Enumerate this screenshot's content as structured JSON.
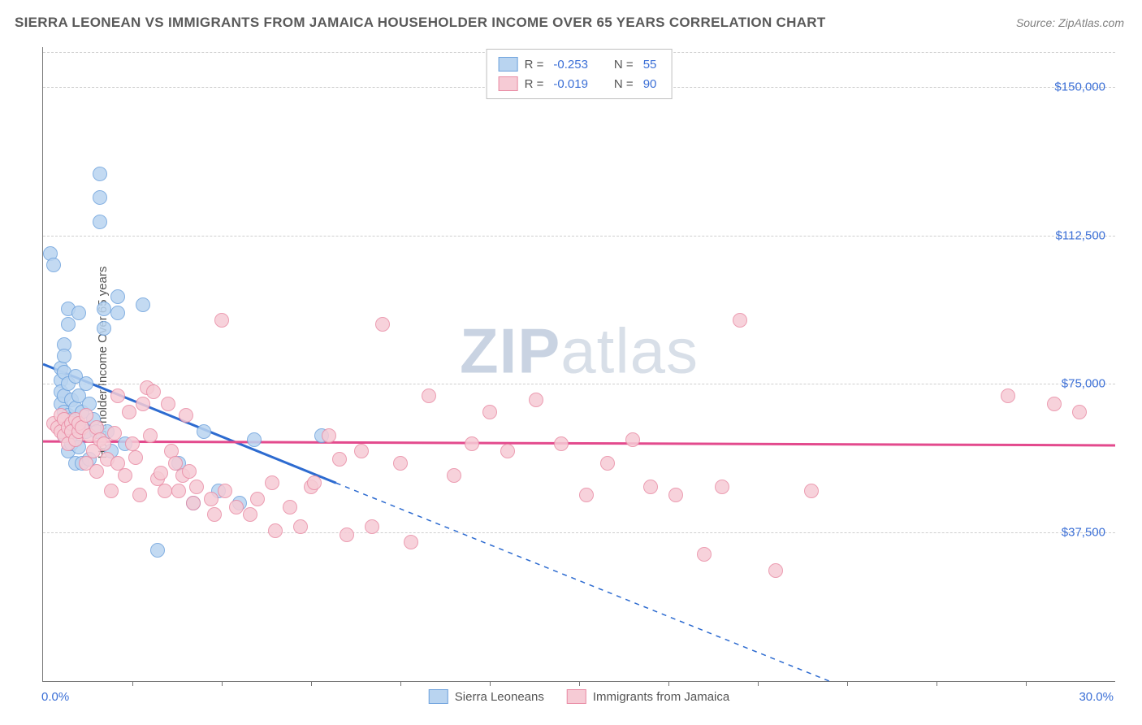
{
  "title": "SIERRA LEONEAN VS IMMIGRANTS FROM JAMAICA HOUSEHOLDER INCOME OVER 65 YEARS CORRELATION CHART",
  "source": "Source: ZipAtlas.com",
  "watermark_a": "ZIP",
  "watermark_b": "atlas",
  "chart": {
    "type": "scatter",
    "ylabel": "Householder Income Over 65 years",
    "xlim": [
      0,
      30
    ],
    "ylim": [
      0,
      160000
    ],
    "x_start_label": "0.0%",
    "x_end_label": "30.0%",
    "x_tick_positions": [
      2.5,
      5,
      7.5,
      10,
      12.5,
      15,
      17.5,
      20,
      22.5,
      25,
      27.5
    ],
    "y_ticks": [
      {
        "v": 37500,
        "label": "$37,500"
      },
      {
        "v": 75000,
        "label": "$75,000"
      },
      {
        "v": 112500,
        "label": "$112,500"
      },
      {
        "v": 150000,
        "label": "$150,000"
      }
    ],
    "grid_color": "#cfcfcf",
    "background_color": "#ffffff",
    "axis_color": "#777777",
    "tick_label_color": "#3b6fd6",
    "series": [
      {
        "name": "Sierra Leoneans",
        "fill": "#b9d4f0",
        "stroke": "#6fa3dd",
        "line_color": "#2d6bd0",
        "R": "-0.253",
        "N": "55",
        "regression": {
          "x1": 0,
          "y1": 80000,
          "x2": 8.2,
          "y2": 50000,
          "dash_x2": 22,
          "dash_y2": 0
        },
        "points": [
          [
            0.2,
            108000
          ],
          [
            0.3,
            105000
          ],
          [
            0.5,
            79000
          ],
          [
            0.5,
            76000
          ],
          [
            0.5,
            73000
          ],
          [
            0.5,
            70000
          ],
          [
            0.6,
            85000
          ],
          [
            0.6,
            82000
          ],
          [
            0.6,
            78000
          ],
          [
            0.6,
            72000
          ],
          [
            0.6,
            68000
          ],
          [
            0.6,
            62000
          ],
          [
            0.7,
            94000
          ],
          [
            0.7,
            90000
          ],
          [
            0.7,
            75000
          ],
          [
            0.7,
            67000
          ],
          [
            0.7,
            63000
          ],
          [
            0.7,
            58000
          ],
          [
            0.8,
            71000
          ],
          [
            0.8,
            66000
          ],
          [
            0.8,
            60000
          ],
          [
            0.9,
            77000
          ],
          [
            0.9,
            69000
          ],
          [
            0.9,
            55000
          ],
          [
            1.0,
            93000
          ],
          [
            1.0,
            72000
          ],
          [
            1.0,
            64000
          ],
          [
            1.0,
            59000
          ],
          [
            1.1,
            68000
          ],
          [
            1.1,
            55000
          ],
          [
            1.2,
            75000
          ],
          [
            1.2,
            63000
          ],
          [
            1.3,
            70000
          ],
          [
            1.3,
            56000
          ],
          [
            1.4,
            66000
          ],
          [
            1.5,
            63000
          ],
          [
            1.6,
            128000
          ],
          [
            1.6,
            122000
          ],
          [
            1.6,
            116000
          ],
          [
            1.7,
            94000
          ],
          [
            1.7,
            89000
          ],
          [
            1.8,
            63000
          ],
          [
            1.9,
            58000
          ],
          [
            2.1,
            97000
          ],
          [
            2.1,
            93000
          ],
          [
            2.3,
            60000
          ],
          [
            2.8,
            95000
          ],
          [
            3.2,
            33000
          ],
          [
            3.8,
            55000
          ],
          [
            4.2,
            45000
          ],
          [
            4.5,
            63000
          ],
          [
            4.9,
            48000
          ],
          [
            5.5,
            45000
          ],
          [
            5.9,
            61000
          ],
          [
            7.8,
            62000
          ]
        ]
      },
      {
        "name": "Immigrants from Jamaica",
        "fill": "#f6cbd5",
        "stroke": "#e98ca5",
        "line_color": "#e34a8d",
        "R": "-0.019",
        "N": "90",
        "regression": {
          "x1": 0,
          "y1": 60500,
          "x2": 30,
          "y2": 59500
        },
        "points": [
          [
            0.3,
            65000
          ],
          [
            0.4,
            64000
          ],
          [
            0.5,
            63000
          ],
          [
            0.5,
            67000
          ],
          [
            0.6,
            62000
          ],
          [
            0.6,
            66000
          ],
          [
            0.7,
            64000
          ],
          [
            0.7,
            60000
          ],
          [
            0.8,
            65000
          ],
          [
            0.8,
            63000
          ],
          [
            0.9,
            66000
          ],
          [
            0.9,
            61000
          ],
          [
            1.0,
            63000
          ],
          [
            1.0,
            65000
          ],
          [
            1.1,
            64000
          ],
          [
            1.2,
            67000
          ],
          [
            1.2,
            55000
          ],
          [
            1.3,
            62000
          ],
          [
            1.4,
            58000
          ],
          [
            1.5,
            64000
          ],
          [
            1.5,
            53000
          ],
          [
            1.6,
            61000
          ],
          [
            1.7,
            60000
          ],
          [
            1.8,
            56000
          ],
          [
            1.9,
            48000
          ],
          [
            2.0,
            62500
          ],
          [
            2.1,
            72000
          ],
          [
            2.1,
            55000
          ],
          [
            2.3,
            52000
          ],
          [
            2.4,
            68000
          ],
          [
            2.5,
            60000
          ],
          [
            2.6,
            56500
          ],
          [
            2.7,
            47000
          ],
          [
            2.8,
            70000
          ],
          [
            2.9,
            74000
          ],
          [
            3.0,
            62000
          ],
          [
            3.1,
            73000
          ],
          [
            3.2,
            51000
          ],
          [
            3.3,
            52500
          ],
          [
            3.4,
            48000
          ],
          [
            3.5,
            70000
          ],
          [
            3.6,
            58000
          ],
          [
            3.7,
            55000
          ],
          [
            3.8,
            48000
          ],
          [
            3.9,
            52000
          ],
          [
            4.0,
            67000
          ],
          [
            4.1,
            53000
          ],
          [
            4.2,
            45000
          ],
          [
            4.3,
            49000
          ],
          [
            4.7,
            46000
          ],
          [
            4.8,
            42000
          ],
          [
            5.0,
            91000
          ],
          [
            5.1,
            48000
          ],
          [
            5.4,
            44000
          ],
          [
            5.8,
            42000
          ],
          [
            6.0,
            46000
          ],
          [
            6.4,
            50000
          ],
          [
            6.5,
            38000
          ],
          [
            6.9,
            44000
          ],
          [
            7.2,
            39000
          ],
          [
            7.5,
            49000
          ],
          [
            7.6,
            50000
          ],
          [
            8.0,
            62000
          ],
          [
            8.3,
            56000
          ],
          [
            8.5,
            37000
          ],
          [
            8.9,
            58000
          ],
          [
            9.2,
            39000
          ],
          [
            9.5,
            90000
          ],
          [
            10.0,
            55000
          ],
          [
            10.3,
            35000
          ],
          [
            10.8,
            72000
          ],
          [
            11.5,
            52000
          ],
          [
            12.0,
            60000
          ],
          [
            12.5,
            68000
          ],
          [
            13.0,
            58000
          ],
          [
            13.8,
            71000
          ],
          [
            14.5,
            60000
          ],
          [
            15.2,
            47000
          ],
          [
            15.8,
            55000
          ],
          [
            16.5,
            61000
          ],
          [
            17.0,
            49000
          ],
          [
            17.7,
            47000
          ],
          [
            18.5,
            32000
          ],
          [
            19.0,
            49000
          ],
          [
            19.5,
            91000
          ],
          [
            20.5,
            28000
          ],
          [
            21.5,
            48000
          ],
          [
            27.0,
            72000
          ],
          [
            28.3,
            70000
          ],
          [
            29.0,
            68000
          ]
        ]
      }
    ],
    "top_legend_labels": {
      "R": "R =",
      "N": "N ="
    }
  }
}
